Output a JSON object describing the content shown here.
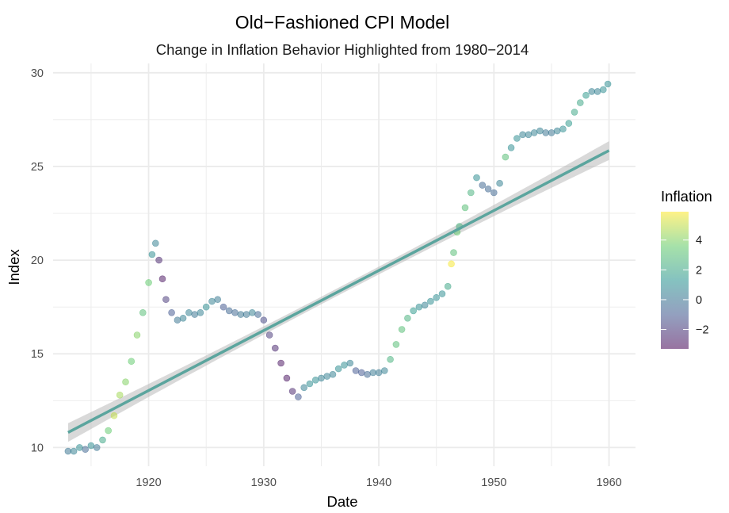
{
  "chart_data": {
    "type": "scatter",
    "title": "Old−Fashioned CPI Model",
    "subtitle": "Change in Inflation Behavior Highlighted from 1980−2014",
    "xlabel": "Date",
    "ylabel": "Index",
    "xlim": [
      1911.7,
      1962.3
    ],
    "ylim": [
      9.0,
      30.5
    ],
    "x_ticks": [
      {
        "value": 1920,
        "label": "1920"
      },
      {
        "value": 1930,
        "label": "1930"
      },
      {
        "value": 1940,
        "label": "1940"
      },
      {
        "value": 1950,
        "label": "1950"
      },
      {
        "value": 1960,
        "label": "1960"
      }
    ],
    "y_ticks": [
      {
        "value": 10,
        "label": "10"
      },
      {
        "value": 15,
        "label": "15"
      },
      {
        "value": 20,
        "label": "20"
      },
      {
        "value": 25,
        "label": "25"
      },
      {
        "value": 30,
        "label": "30"
      }
    ],
    "grid": true,
    "legend": {
      "title": "Inflation",
      "position": "right",
      "range": [
        -3.3,
        5.9
      ],
      "ticks": [
        {
          "value": -2,
          "label": "−2"
        },
        {
          "value": 0,
          "label": "0"
        },
        {
          "value": 2,
          "label": "2"
        },
        {
          "value": 4,
          "label": "4"
        }
      ]
    },
    "colors": {
      "trend_line": "#5ba59e",
      "confidence_band": "#b3b3b3",
      "gridline": "#ebebeb",
      "colormap": [
        "#440154",
        "#3b528b",
        "#21908c",
        "#5dc963",
        "#fde725"
      ]
    },
    "series": [
      {
        "name": "Index",
        "x": [
          1913.0,
          1913.5,
          1914.0,
          1914.5,
          1915.0,
          1915.5,
          1916.0,
          1916.5,
          1917.0,
          1917.5,
          1918.0,
          1918.5,
          1919.0,
          1919.5,
          1920.0,
          1920.3,
          1920.6,
          1920.9,
          1921.2,
          1921.5,
          1922.0,
          1922.5,
          1923.0,
          1923.5,
          1924.0,
          1924.5,
          1925.0,
          1925.5,
          1926.0,
          1926.5,
          1927.0,
          1927.5,
          1928.0,
          1928.5,
          1929.0,
          1929.5,
          1930.0,
          1930.5,
          1931.0,
          1931.5,
          1932.0,
          1932.5,
          1933.0,
          1933.5,
          1934.0,
          1934.5,
          1935.0,
          1935.5,
          1936.0,
          1936.5,
          1937.0,
          1937.5,
          1938.0,
          1938.5,
          1939.0,
          1939.5,
          1940.0,
          1940.5,
          1941.0,
          1941.5,
          1942.0,
          1942.5,
          1943.0,
          1943.5,
          1944.0,
          1944.5,
          1945.0,
          1945.5,
          1946.0,
          1946.3,
          1946.5,
          1946.8,
          1947.0,
          1947.5,
          1948.0,
          1948.5,
          1949.0,
          1949.5,
          1950.0,
          1950.5,
          1951.0,
          1951.5,
          1952.0,
          1952.5,
          1953.0,
          1953.5,
          1954.0,
          1954.5,
          1955.0,
          1955.5,
          1956.0,
          1956.5,
          1957.0,
          1957.5,
          1958.0,
          1958.5,
          1959.0,
          1959.5,
          1959.9
        ],
        "y": [
          9.8,
          9.8,
          10.0,
          9.9,
          10.1,
          10.0,
          10.4,
          10.9,
          11.7,
          12.8,
          13.5,
          14.6,
          16.0,
          17.2,
          18.8,
          20.3,
          20.9,
          20.0,
          19.0,
          17.9,
          17.2,
          16.8,
          16.9,
          17.2,
          17.1,
          17.2,
          17.5,
          17.8,
          17.9,
          17.5,
          17.3,
          17.2,
          17.1,
          17.1,
          17.2,
          17.1,
          16.8,
          16.0,
          15.3,
          14.5,
          13.7,
          13.0,
          12.7,
          13.2,
          13.4,
          13.6,
          13.7,
          13.8,
          13.9,
          14.2,
          14.4,
          14.5,
          14.1,
          14.0,
          13.9,
          14.0,
          14.0,
          14.1,
          14.7,
          15.5,
          16.3,
          16.9,
          17.3,
          17.5,
          17.6,
          17.8,
          18.0,
          18.2,
          18.6,
          19.8,
          20.4,
          21.5,
          21.8,
          22.8,
          23.6,
          24.4,
          24.0,
          23.8,
          23.6,
          24.1,
          25.5,
          26.0,
          26.5,
          26.7,
          26.7,
          26.8,
          26.9,
          26.8,
          26.8,
          26.9,
          27.0,
          27.3,
          27.9,
          28.4,
          28.8,
          29.0,
          29.0,
          29.1,
          29.4
        ],
        "inflation": [
          0,
          0.5,
          1.0,
          -0.5,
          1.0,
          0,
          2.0,
          3.5,
          5.0,
          4.5,
          4.0,
          3.5,
          4.0,
          3.0,
          3.5,
          1.0,
          0.5,
          -2.5,
          -3.0,
          -2.0,
          -1.0,
          0,
          0.5,
          0.5,
          0,
          0.5,
          1.0,
          0.5,
          0.2,
          -1.0,
          -0.5,
          -0.5,
          0,
          0,
          0.5,
          -0.5,
          -1.5,
          -2.0,
          -2.5,
          -3.0,
          -3.0,
          -2.5,
          -1.0,
          0.5,
          1.0,
          1.0,
          0.5,
          0.5,
          0.5,
          1.0,
          1.0,
          0.5,
          -1.0,
          -1.0,
          -0.5,
          0.2,
          0.2,
          0.5,
          2.5,
          3.0,
          3.0,
          2.5,
          1.5,
          1.0,
          0.5,
          1.0,
          1.0,
          1.0,
          2.0,
          5.8,
          3.0,
          3.5,
          2.5,
          3.0,
          2.5,
          1.0,
          -0.5,
          -0.5,
          -0.5,
          0.5,
          3.0,
          1.0,
          1.0,
          0.5,
          0.5,
          0.5,
          0.5,
          0,
          0,
          0.5,
          1.0,
          1.5,
          2.0,
          2.0,
          1.5,
          0.5,
          0.5,
          1.0,
          1.0
        ]
      }
    ],
    "trend": {
      "x": [
        1913.0,
        1960.0
      ],
      "y": [
        10.8,
        25.85
      ],
      "band_halfwidth_ends": 0.5,
      "band_halfwidth_mid": 0.2
    }
  }
}
